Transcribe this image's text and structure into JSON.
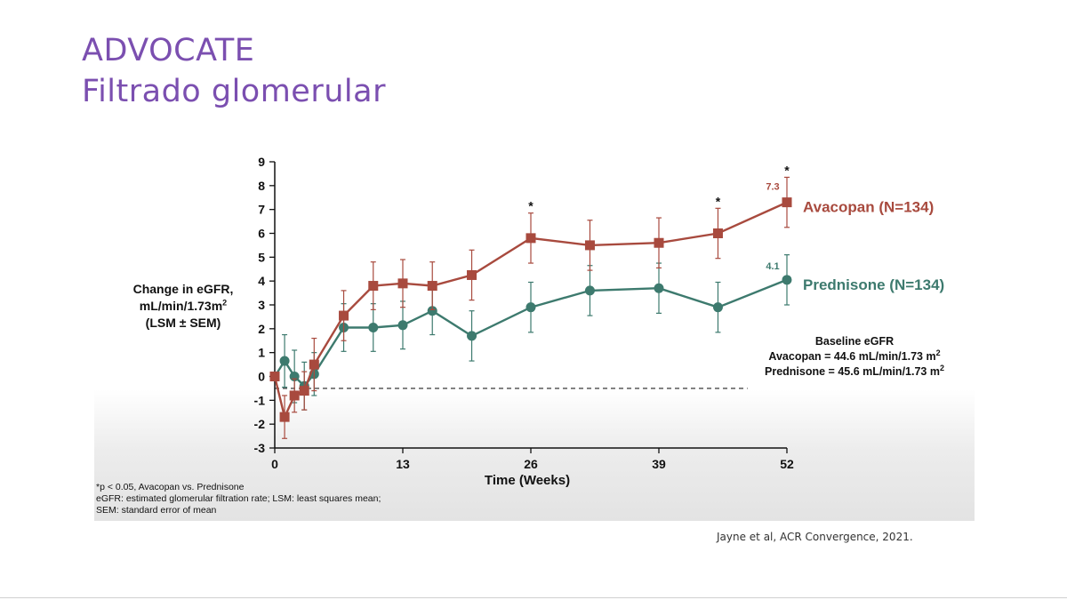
{
  "slide": {
    "title_line1": "ADVOCATE",
    "title_line2": "Filtrado glomerular",
    "citation": "Jayne et al, ACR Convergence, 2021."
  },
  "colors": {
    "title": "#7b4fb0",
    "avacopan": "#a84a3e",
    "prednisone": "#3d7a6e"
  },
  "chart_data": {
    "type": "line",
    "xlabel": "Time (Weeks)",
    "ylabel_lines": [
      "Change in eGFR,",
      "mL/min/1.73m",
      "(LSM ± SEM)"
    ],
    "ylabel_superscript": "2",
    "xlim": [
      0,
      52
    ],
    "ylim": [
      -3,
      9
    ],
    "x_ticks": [
      0,
      13,
      26,
      39,
      52
    ],
    "y_ticks": [
      -3,
      -2,
      -1,
      0,
      1,
      2,
      3,
      4,
      5,
      6,
      7,
      8,
      9
    ],
    "reference_line_y": -0.5,
    "series": [
      {
        "name": "Avacopan (N=134)",
        "color": "#a84a3e",
        "marker": "square",
        "x": [
          0,
          1,
          2,
          3,
          4,
          7,
          10,
          13,
          16,
          20,
          26,
          32,
          39,
          45,
          52
        ],
        "y": [
          0,
          -1.7,
          -0.8,
          -0.6,
          0.5,
          2.55,
          3.8,
          3.9,
          3.8,
          4.25,
          5.8,
          5.5,
          5.6,
          6.0,
          7.3
        ],
        "sem": [
          0,
          0.9,
          0.7,
          0.8,
          1.1,
          1.05,
          1.0,
          1.0,
          1.0,
          1.05,
          1.05,
          1.05,
          1.05,
          1.05,
          1.05
        ],
        "end_label": "7.3",
        "significant_x": [
          26,
          45,
          52
        ]
      },
      {
        "name": "Prednisone (N=134)",
        "color": "#3d7a6e",
        "marker": "circle",
        "x": [
          0,
          1,
          2,
          3,
          4,
          7,
          10,
          13,
          16,
          20,
          26,
          32,
          39,
          45,
          52
        ],
        "y": [
          0,
          0.65,
          0.0,
          -0.4,
          0.1,
          2.05,
          2.05,
          2.15,
          2.75,
          1.7,
          2.9,
          3.6,
          3.7,
          2.9,
          4.05
        ],
        "sem": [
          0,
          1.1,
          1.1,
          1.0,
          0.9,
          1.0,
          1.0,
          1.0,
          1.0,
          1.05,
          1.05,
          1.05,
          1.05,
          1.05,
          1.05
        ],
        "end_label": "4.1"
      }
    ],
    "annotation_symbol": "*",
    "baseline_box": {
      "heading": "Baseline eGFR",
      "avacopan": "Avacopan = 44.6 mL/min/1.73 m",
      "prednisone": "Prednisone = 45.6 mL/min/1.73 m",
      "superscript": "2"
    },
    "footnotes": [
      "*p < 0.05, Avacopan vs. Prednisone",
      "eGFR: estimated glomerular filtration rate; LSM: least squares mean;",
      "SEM: standard error of mean"
    ]
  }
}
